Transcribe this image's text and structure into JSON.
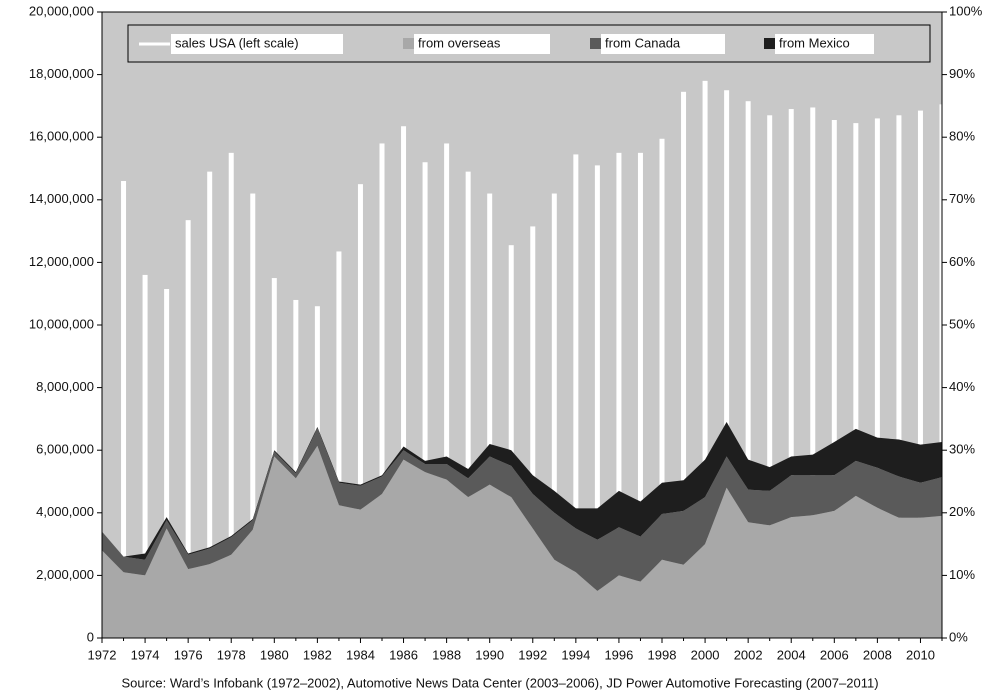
{
  "chart_data": {
    "type": "bar-area",
    "source": "Source: Ward’s Infobank (1972–2002), Automotive News Data Center (2003–2006), JD Power Automotive Forecasting (2007–2011)",
    "x": [
      1972,
      1973,
      1974,
      1975,
      1976,
      1977,
      1978,
      1979,
      1980,
      1981,
      1982,
      1983,
      1984,
      1985,
      1986,
      1987,
      1988,
      1989,
      1990,
      1991,
      1992,
      1993,
      1994,
      1995,
      1996,
      1997,
      1998,
      1999,
      2000,
      2001,
      2002,
      2003,
      2004,
      2005,
      2006,
      2007,
      2008,
      2009,
      2010,
      2011
    ],
    "xlim": [
      1972,
      2011
    ],
    "xticks": [
      1972,
      1974,
      1976,
      1978,
      1980,
      1982,
      1984,
      1986,
      1988,
      1990,
      1992,
      1994,
      1996,
      1998,
      2000,
      2002,
      2004,
      2006,
      2008,
      2010
    ],
    "ylim": [
      0,
      20000000
    ],
    "yticks": [
      0,
      {
        "value": 2000000,
        "label": "2,000,000"
      },
      {
        "value": 4000000,
        "label": "4,000,000"
      },
      {
        "value": 6000000,
        "label": "6,000,000"
      },
      {
        "value": 8000000,
        "label": "8,000,000"
      },
      {
        "value": 10000000,
        "label": "10,000,000"
      },
      {
        "value": 12000000,
        "label": "12,000,000"
      },
      {
        "value": 14000000,
        "label": "14,000,000"
      },
      {
        "value": 16000000,
        "label": "16,000,000"
      },
      {
        "value": 18000000,
        "label": "18,000,000"
      },
      {
        "value": 20000000,
        "label": "20,000,000"
      }
    ],
    "y2lim": [
      0,
      100
    ],
    "y2ticks": [
      {
        "value": 0,
        "label": "0%"
      },
      {
        "value": 10,
        "label": "10%"
      },
      {
        "value": 20,
        "label": "20%"
      },
      {
        "value": 30,
        "label": "30%"
      },
      {
        "value": 40,
        "label": "40%"
      },
      {
        "value": 50,
        "label": "50%"
      },
      {
        "value": 60,
        "label": "60%"
      },
      {
        "value": 70,
        "label": "70%"
      },
      {
        "value": 80,
        "label": "80%"
      },
      {
        "value": 90,
        "label": "90%"
      },
      {
        "value": 100,
        "label": "100%"
      }
    ],
    "series": [
      {
        "name": "sales USA (left scale)",
        "type": "bar",
        "color": "#ffffff",
        "axis": "y",
        "values": [
          null,
          14600000,
          11600000,
          11150000,
          13350000,
          14900000,
          15500000,
          14200000,
          11500000,
          10800000,
          10600000,
          12350000,
          14500000,
          15800000,
          16350000,
          15200000,
          15800000,
          14900000,
          14200000,
          12550000,
          13150000,
          14200000,
          15450000,
          15100000,
          15500000,
          15500000,
          15950000,
          17450000,
          17800000,
          17500000,
          17150000,
          16700000,
          16900000,
          16950000,
          16550000,
          16450000,
          16600000,
          16700000,
          16850000,
          17050000
        ]
      },
      {
        "name": "from overseas",
        "type": "area",
        "color": "#a8a8a8",
        "axis": "y2",
        "values": [
          14,
          10.5,
          10,
          17.5,
          11,
          11.8,
          13.3,
          17.3,
          29,
          25.5,
          30.7,
          21.2,
          20.5,
          23,
          28.5,
          26.5,
          25.3,
          22.5,
          24.5,
          22.5,
          17.5,
          12.5,
          10.5,
          7.5,
          10,
          9,
          12.5,
          11.7,
          15,
          24,
          18.5,
          18,
          19.3,
          19.6,
          20.3,
          22.7,
          20.8,
          19.2,
          19.2,
          19.5
        ]
      },
      {
        "name": "from Canada",
        "type": "area",
        "color": "#5a5a5a",
        "axis": "y2",
        "values": [
          3,
          2.5,
          2.5,
          1.3,
          2.3,
          2.5,
          2.8,
          1.5,
          0.8,
          0.8,
          2.8,
          3.6,
          3.8,
          2.8,
          1.5,
          1.3,
          2.5,
          3,
          4.5,
          5,
          5.5,
          7.5,
          7,
          8.2,
          7.7,
          7.2,
          7.3,
          8.6,
          7.5,
          5,
          5.2,
          5.5,
          6.7,
          6.4,
          5.7,
          5.6,
          6.4,
          6.6,
          5.6,
          6.2
        ]
      },
      {
        "name": "from Mexico",
        "type": "area",
        "color": "#1e1e1e",
        "axis": "y2",
        "values": [
          0,
          0,
          1,
          0.5,
          0.2,
          0.2,
          0.2,
          0.2,
          0.2,
          0.2,
          0.2,
          0.2,
          0.2,
          0.2,
          0.6,
          0.5,
          1.2,
          1.5,
          2,
          2.5,
          3,
          3.5,
          3.2,
          5,
          5.8,
          5.6,
          5,
          4.9,
          6,
          5.5,
          4.8,
          3.8,
          3,
          3.3,
          5.3,
          5.1,
          4.8,
          5.9,
          6.1,
          5.6
        ]
      }
    ]
  }
}
